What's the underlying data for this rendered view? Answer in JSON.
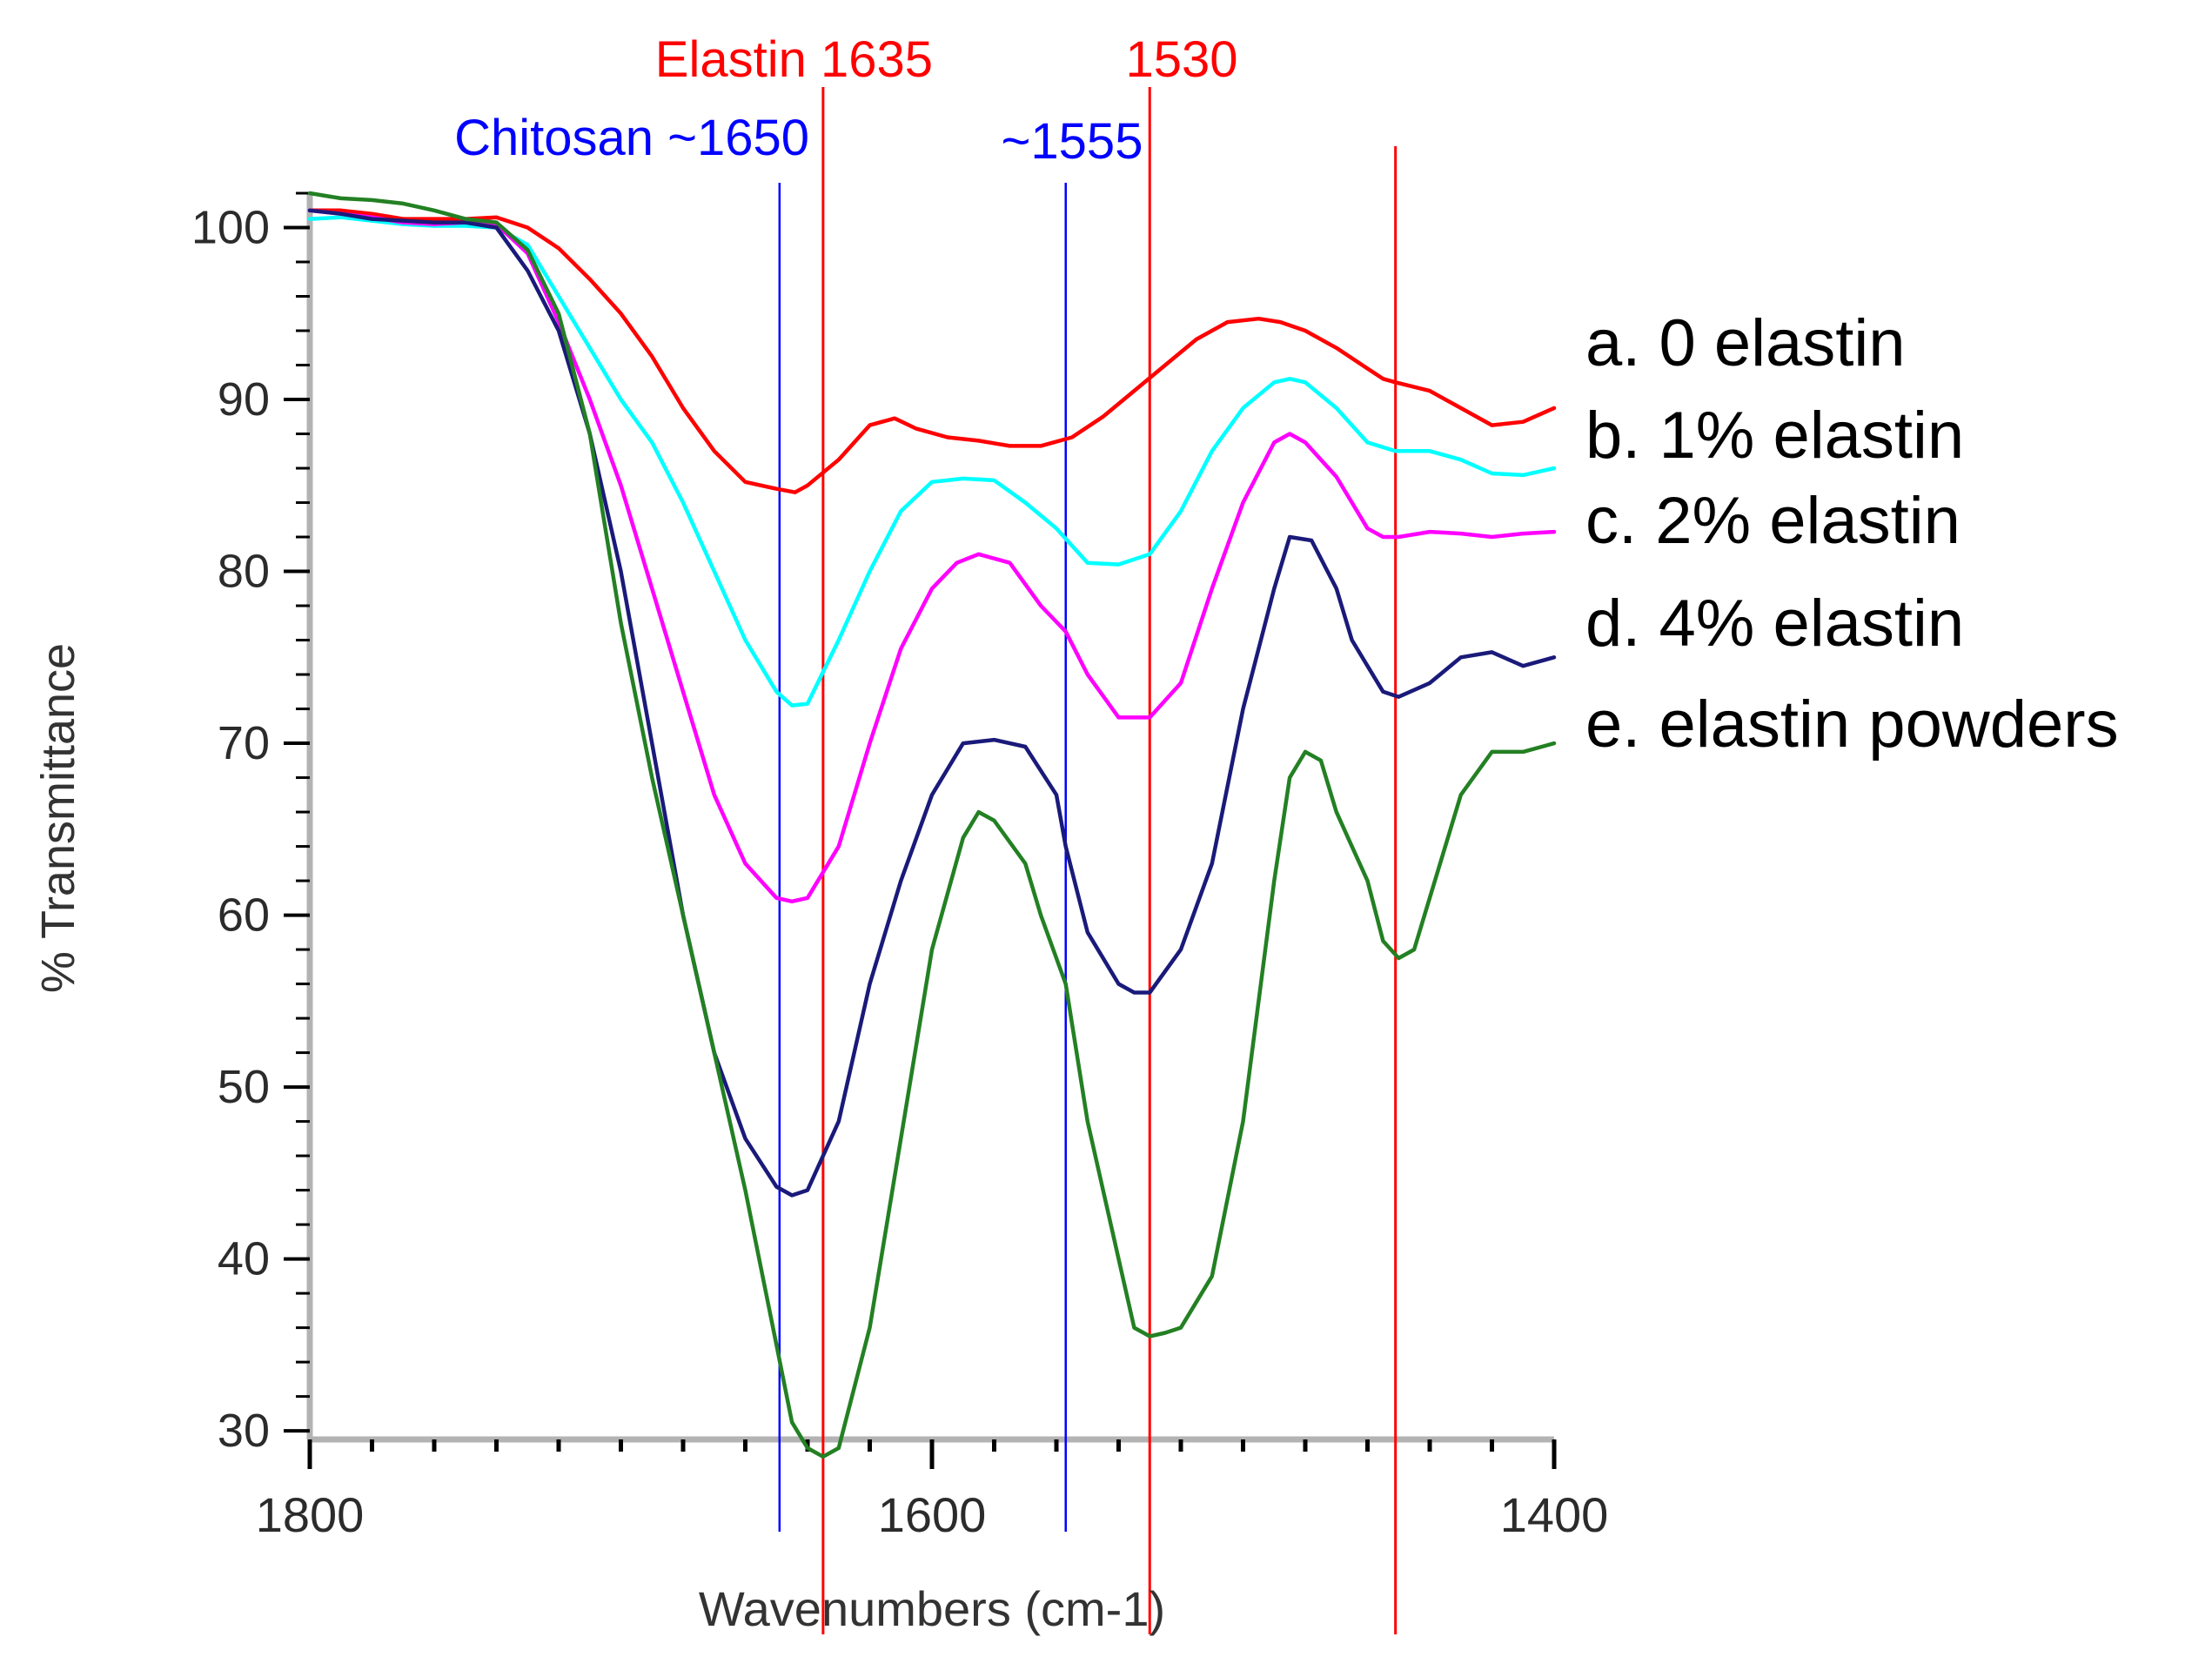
{
  "chart_data": {
    "type": "line",
    "xlabel": "Wavenumbers (cm-1)",
    "ylabel": "% Transmittance",
    "xlim": [
      1800,
      1400
    ],
    "ylim": [
      29.5,
      102
    ],
    "x_ticks": [
      1800,
      1600,
      1400
    ],
    "y_ticks": [
      30,
      40,
      50,
      60,
      70,
      80,
      90,
      100
    ],
    "colors": {
      "axis": "#b3b3b3",
      "tick_label": "#2b2b2b",
      "reference_red": "#ff0000",
      "reference_blue": "#0000ff"
    },
    "reference_lines": [
      {
        "x": 1649,
        "color": "#0000ff",
        "label": "Chitosan ~1650"
      },
      {
        "x": 1635,
        "color": "#ff0000",
        "label": "Elastin 1635"
      },
      {
        "x": 1557,
        "color": "#0000ff",
        "label": "~1555"
      },
      {
        "x": 1530,
        "color": "#ff0000",
        "label": "1530"
      },
      {
        "x": 1451,
        "color": "#ff0000",
        "label": ""
      }
    ],
    "series": [
      {
        "name": "a. 0 elastin",
        "color": "#ff0000",
        "x": [
          1800,
          1790,
          1780,
          1770,
          1760,
          1750,
          1740,
          1730,
          1720,
          1710,
          1700,
          1690,
          1680,
          1670,
          1660,
          1650,
          1644,
          1640,
          1630,
          1620,
          1612,
          1605,
          1595,
          1585,
          1575,
          1565,
          1555,
          1545,
          1535,
          1525,
          1515,
          1505,
          1495,
          1488,
          1480,
          1470,
          1460,
          1455,
          1451,
          1440,
          1430,
          1420,
          1410,
          1400
        ],
        "y": [
          101,
          101,
          100.8,
          100.5,
          100.5,
          100.5,
          100.6,
          100,
          98.8,
          97,
          95,
          92.5,
          89.5,
          87,
          85.2,
          84.8,
          84.6,
          85,
          86.5,
          88.5,
          88.9,
          88.3,
          87.8,
          87.6,
          87.3,
          87.3,
          87.8,
          89,
          90.5,
          92,
          93.5,
          94.5,
          94.7,
          94.5,
          94,
          93,
          91.8,
          91.2,
          91,
          90.5,
          89.5,
          88.5,
          88.7,
          89.5
        ]
      },
      {
        "name": "b. 1% elastin",
        "color": "#00ffff",
        "x": [
          1800,
          1790,
          1780,
          1770,
          1760,
          1750,
          1740,
          1730,
          1720,
          1710,
          1700,
          1690,
          1680,
          1670,
          1660,
          1650,
          1645,
          1640,
          1630,
          1620,
          1610,
          1600,
          1590,
          1580,
          1570,
          1560,
          1550,
          1540,
          1530,
          1520,
          1510,
          1500,
          1490,
          1485,
          1480,
          1470,
          1460,
          1451,
          1440,
          1430,
          1420,
          1410,
          1400
        ],
        "y": [
          100.5,
          100.6,
          100.4,
          100.2,
          100.1,
          100.1,
          100,
          99,
          96,
          93,
          90,
          87.5,
          84,
          80,
          76,
          73,
          72.2,
          72.3,
          76,
          80,
          83.5,
          85.2,
          85.4,
          85.3,
          84,
          82.5,
          80.5,
          80.4,
          81,
          83.5,
          87,
          89.5,
          91,
          91.2,
          91,
          89.5,
          87.5,
          87,
          87,
          86.5,
          85.7,
          85.6,
          86
        ]
      },
      {
        "name": "c. 2% elastin",
        "color": "#ff00ff",
        "x": [
          1800,
          1790,
          1780,
          1770,
          1760,
          1750,
          1740,
          1730,
          1720,
          1710,
          1700,
          1690,
          1680,
          1670,
          1660,
          1650,
          1645,
          1640,
          1630,
          1620,
          1610,
          1600,
          1592,
          1585,
          1575,
          1565,
          1557,
          1550,
          1540,
          1530,
          1520,
          1510,
          1500,
          1490,
          1485,
          1480,
          1470,
          1460,
          1455,
          1450,
          1440,
          1430,
          1420,
          1410,
          1400
        ],
        "y": [
          101,
          100.8,
          100.6,
          100.3,
          100.2,
          100.3,
          100.2,
          98.5,
          94.5,
          90,
          85,
          79,
          73,
          67,
          63,
          61,
          60.8,
          61,
          64,
          70,
          75.5,
          79,
          80.5,
          81,
          80.5,
          78,
          76.5,
          74,
          71.5,
          71.5,
          73.5,
          79,
          84,
          87.5,
          88,
          87.5,
          85.5,
          82.5,
          82,
          82,
          82.3,
          82.2,
          82,
          82.2,
          82.3
        ]
      },
      {
        "name": "d. 4% elastin",
        "color": "#1a1a7a",
        "x": [
          1800,
          1790,
          1780,
          1770,
          1760,
          1750,
          1740,
          1730,
          1720,
          1710,
          1700,
          1690,
          1680,
          1670,
          1660,
          1650,
          1645,
          1640,
          1630,
          1620,
          1610,
          1600,
          1590,
          1580,
          1570,
          1560,
          1557,
          1550,
          1540,
          1535,
          1530,
          1520,
          1510,
          1500,
          1490,
          1485,
          1478,
          1470,
          1465,
          1460,
          1455,
          1450,
          1440,
          1430,
          1420,
          1410,
          1400
        ],
        "y": [
          101,
          100.8,
          100.5,
          100.4,
          100.3,
          100.3,
          100,
          97.5,
          94,
          88,
          80,
          70,
          60,
          52,
          47,
          44.2,
          43.7,
          44,
          48,
          56,
          62,
          67,
          70,
          70.2,
          69.8,
          67,
          64,
          59,
          56,
          55.5,
          55.5,
          58,
          63,
          72,
          79,
          82,
          81.8,
          79,
          76,
          74.5,
          73,
          72.7,
          73.5,
          75,
          75.3,
          74.5,
          75
        ]
      },
      {
        "name": "e. elastin powders",
        "color": "#238023",
        "x": [
          1800,
          1790,
          1780,
          1770,
          1760,
          1750,
          1740,
          1730,
          1720,
          1710,
          1700,
          1690,
          1680,
          1670,
          1660,
          1650,
          1645,
          1640,
          1635,
          1630,
          1620,
          1610,
          1600,
          1590,
          1585,
          1580,
          1570,
          1565,
          1557,
          1550,
          1540,
          1535,
          1530,
          1525,
          1520,
          1510,
          1500,
          1490,
          1485,
          1480,
          1475,
          1470,
          1465,
          1460,
          1455,
          1450,
          1445,
          1440,
          1430,
          1420,
          1410,
          1400
        ],
        "y": [
          102,
          101.7,
          101.6,
          101.4,
          101,
          100.5,
          100.3,
          98.7,
          95,
          88,
          77,
          68,
          60,
          52,
          44,
          35,
          30.5,
          29,
          28.5,
          29,
          36,
          47,
          58,
          64.5,
          66,
          65.5,
          63,
          60,
          56,
          48,
          40,
          36,
          35.5,
          35.7,
          36,
          39,
          48,
          62,
          68,
          69.5,
          69,
          66,
          64,
          62,
          58.5,
          57.5,
          58,
          61,
          67,
          69.5,
          69.5,
          70
        ]
      }
    ]
  }
}
